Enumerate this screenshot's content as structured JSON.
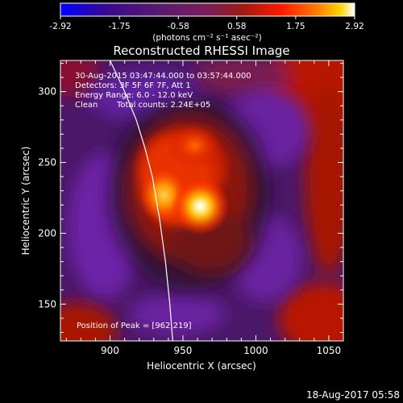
{
  "chart_data": {
    "type": "heatmap",
    "title": "Reconstructed RHESSI Image",
    "xlabel": "Heliocentric X (arcsec)",
    "ylabel": "Heliocentric Y (arcsec)",
    "xlim": [
      866,
      1060
    ],
    "ylim": [
      124,
      322
    ],
    "x_ticks": [
      900,
      950,
      1000,
      1050
    ],
    "y_ticks": [
      150,
      200,
      250,
      300
    ],
    "colorbar": {
      "min": -2.92,
      "max": 2.92,
      "tick_labels": [
        "-2.92",
        "-1.75",
        "-0.58",
        "0.58",
        "1.75",
        "2.92"
      ],
      "units": "(photons cm⁻² s⁻¹ asec⁻²)",
      "colormap": [
        "#0000ff",
        "#3a0a8c",
        "#5c1a6e",
        "#7a1e5a",
        "#a01a10",
        "#ff1800",
        "#ff7a00",
        "#ffd000",
        "#ffffff"
      ]
    },
    "annotations": [
      "30-Aug-2015 03:47:44.000 to 03:57:44.000",
      "Detectors: 3F 5F 6F 7F, Att 1",
      "Energy Range: 6.0 - 12.0 keV",
      "Clean",
      "Total counts: 2.24E+05"
    ],
    "peak_label": "Position of Peak = [962,219]",
    "peak": {
      "x": 962,
      "y": 219
    },
    "features": [
      {
        "name": "peak-source",
        "x": 962,
        "y": 219,
        "intensity": 2.92
      },
      {
        "name": "secondary-source",
        "x": 937,
        "y": 227,
        "intensity": 2.3
      },
      {
        "name": "upper-source",
        "x": 958,
        "y": 262,
        "intensity": 1.6
      }
    ],
    "limb_curve": [
      [
        900,
        322
      ],
      [
        910,
        300
      ],
      [
        918,
        280
      ],
      [
        924,
        260
      ],
      [
        929,
        240
      ],
      [
        934,
        210
      ],
      [
        938,
        180
      ],
      [
        941,
        150
      ],
      [
        943,
        124
      ]
    ]
  },
  "footer_date": "18-Aug-2017 05:58"
}
